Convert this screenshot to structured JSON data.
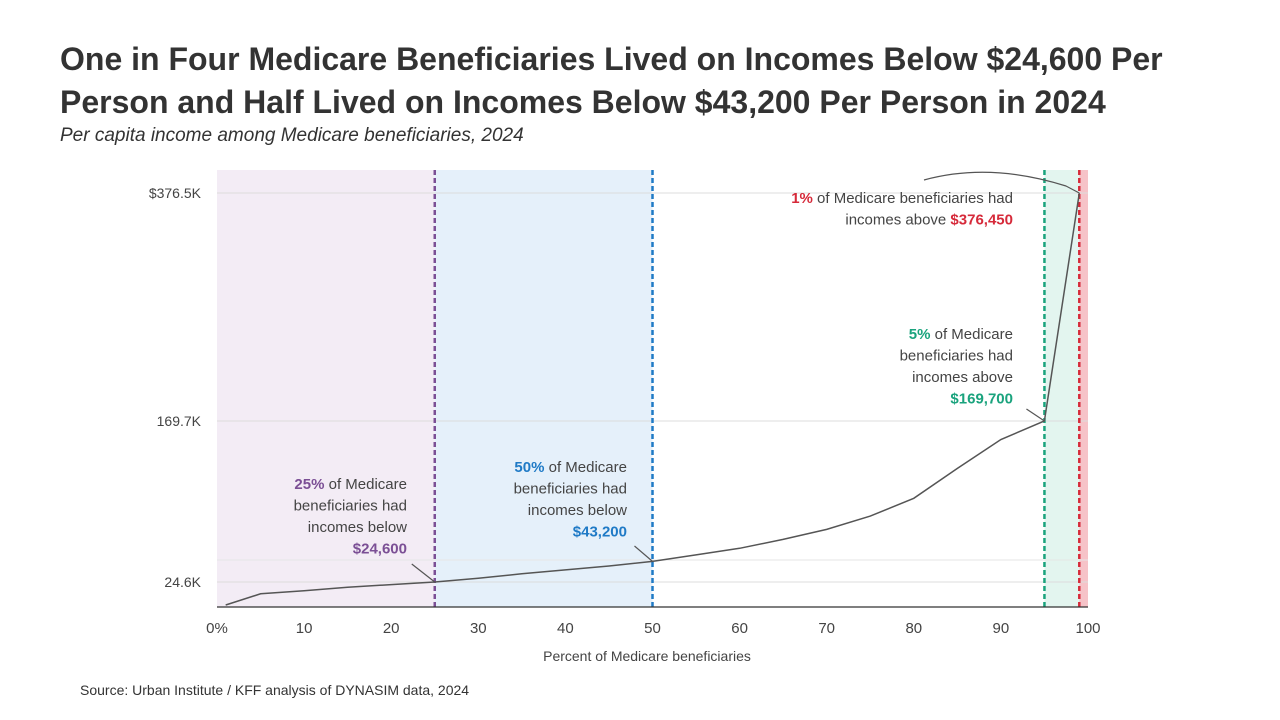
{
  "header": {
    "title": "One in Four Medicare Beneficiaries Lived on Incomes Below $24,600 Per Person and Half Lived on Incomes Below $43,200 Per Person in 2024",
    "subtitle": "Per capita income among Medicare beneficiaries, 2024"
  },
  "footer": {
    "source": "Source: Urban Institute / KFF analysis of DYNASIM data, 2024"
  },
  "colors": {
    "purple": "#7b4f95",
    "blue": "#1f7ac6",
    "green": "#1aa37d",
    "red": "#d62a3a",
    "line": "#555555"
  },
  "chart_data": {
    "type": "line",
    "xlabel": "Percent of Medicare beneficiaries",
    "xlim": [
      0,
      100
    ],
    "x_ticks": [
      0,
      10,
      20,
      30,
      40,
      50,
      60,
      70,
      80,
      90,
      100
    ],
    "x_tick_labels": [
      "0%",
      "10",
      "20",
      "30",
      "40",
      "50",
      "60",
      "70",
      "80",
      "90",
      "100"
    ],
    "y_ticks": [
      24.6,
      169.7,
      376.5
    ],
    "y_tick_labels": [
      "24.6K",
      "169.7K",
      "$376.5K"
    ],
    "grid": true,
    "series": [
      {
        "x": [
          1,
          5,
          10,
          15,
          20,
          25,
          30,
          35,
          40,
          45,
          50,
          55,
          60,
          65,
          70,
          75,
          80,
          85,
          90,
          95,
          99
        ],
        "y": [
          2,
          13,
          16,
          19.5,
          22,
          24.6,
          28,
          32,
          35.5,
          39,
          43.2,
          49,
          55,
          63,
          72,
          84,
          100,
          127,
          153,
          169.7,
          376.45
        ]
      }
    ],
    "bands": [
      {
        "from": 0,
        "to": 25,
        "color": "#f3ecf5"
      },
      {
        "from": 25,
        "to": 50,
        "color": "#e5f0fa"
      },
      {
        "from": 95,
        "to": 99,
        "color": "#e3f5ef"
      },
      {
        "from": 99,
        "to": 100,
        "color": "#f6c3c8"
      }
    ],
    "reference_lines": [
      {
        "x": 25,
        "color": "#7b4f95"
      },
      {
        "x": 50,
        "color": "#1f7ac6"
      },
      {
        "x": 95,
        "color": "#1aa37d"
      },
      {
        "x": 99,
        "color": "#d62a3a"
      }
    ],
    "annotations": [
      {
        "id": "p25",
        "color": "#7b4f95",
        "lines": [
          [
            {
              "t": "25%",
              "hi": true
            },
            {
              "t": " of Medicare"
            }
          ],
          [
            {
              "t": "beneficiaries had"
            }
          ],
          [
            {
              "t": "incomes below"
            }
          ],
          [
            {
              "t": "$24,600",
              "hi": true
            }
          ]
        ]
      },
      {
        "id": "p50",
        "color": "#1f7ac6",
        "lines": [
          [
            {
              "t": "50%",
              "hi": true
            },
            {
              "t": " of Medicare"
            }
          ],
          [
            {
              "t": "beneficiaries had"
            }
          ],
          [
            {
              "t": "incomes below"
            }
          ],
          [
            {
              "t": "$43,200",
              "hi": true
            }
          ]
        ]
      },
      {
        "id": "p95",
        "color": "#1aa37d",
        "lines": [
          [
            {
              "t": "5%",
              "hi": true
            },
            {
              "t": " of Medicare"
            }
          ],
          [
            {
              "t": "beneficiaries had"
            }
          ],
          [
            {
              "t": "incomes above"
            }
          ],
          [
            {
              "t": "$169,700",
              "hi": true
            }
          ]
        ]
      },
      {
        "id": "p99",
        "color": "#d62a3a",
        "lines": [
          [
            {
              "t": "1%",
              "hi": true
            },
            {
              "t": " of Medicare beneficiaries had"
            }
          ],
          [
            {
              "t": "incomes above "
            },
            {
              "t": "$376,450",
              "hi": true
            }
          ]
        ]
      }
    ]
  }
}
